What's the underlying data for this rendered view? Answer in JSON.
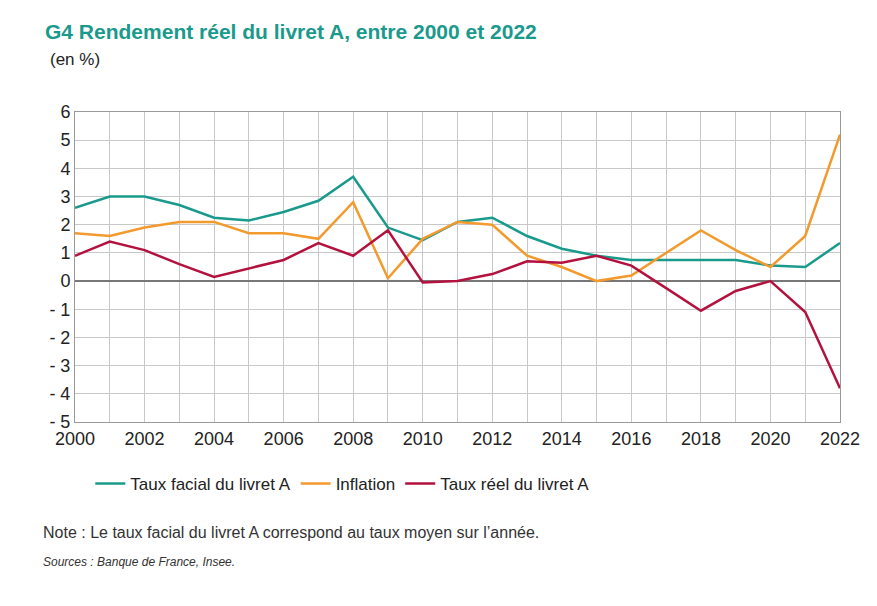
{
  "chart_data": {
    "type": "line",
    "title": "G4 Rendement réel du livret A, entre 2000 et 2022",
    "subtitle": "(en %)",
    "annotations": [
      "Note : Le taux facial du livret A correspond au taux moyen sur l’année.",
      "Sources : Banque de France, Insee."
    ],
    "x": [
      2000,
      2001,
      2002,
      2003,
      2004,
      2005,
      2006,
      2007,
      2008,
      2009,
      2010,
      2011,
      2012,
      2013,
      2014,
      2015,
      2016,
      2017,
      2018,
      2019,
      2020,
      2021,
      2022
    ],
    "series": [
      {
        "name": "Taux facial du livret A",
        "color": "#1a9a8c",
        "values": [
          2.6,
          3.0,
          3.0,
          2.7,
          2.25,
          2.15,
          2.45,
          2.85,
          3.7,
          1.9,
          1.45,
          2.1,
          2.25,
          1.6,
          1.15,
          0.9,
          0.75,
          0.75,
          0.75,
          0.75,
          0.55,
          0.5,
          1.35
        ]
      },
      {
        "name": "Inflation",
        "color": "#f39a2e",
        "values": [
          1.7,
          1.6,
          1.9,
          2.1,
          2.1,
          1.7,
          1.7,
          1.5,
          2.8,
          0.1,
          1.5,
          2.1,
          2.0,
          0.9,
          0.5,
          0.0,
          0.2,
          1.0,
          1.8,
          1.1,
          0.5,
          1.6,
          5.2
        ]
      },
      {
        "name": "Taux réel du livret A",
        "color": "#b3123f",
        "values": [
          0.9,
          1.4,
          1.1,
          0.6,
          0.15,
          0.45,
          0.75,
          1.35,
          0.9,
          1.8,
          -0.05,
          0.0,
          0.25,
          0.7,
          0.65,
          0.9,
          0.55,
          -0.25,
          -1.05,
          -0.35,
          0.0,
          -1.1,
          -3.8
        ]
      }
    ],
    "xlim": [
      2000,
      2022
    ],
    "xticks": [
      2000,
      2002,
      2004,
      2006,
      2008,
      2010,
      2012,
      2014,
      2016,
      2018,
      2020,
      2022
    ],
    "ylim": [
      -5,
      6
    ],
    "yticks": [
      {
        "value": -5,
        "label": "- 5"
      },
      {
        "value": -4,
        "label": "- 4"
      },
      {
        "value": -3,
        "label": "- 3"
      },
      {
        "value": -2,
        "label": "- 2"
      },
      {
        "value": -1,
        "label": "- 1"
      },
      0,
      1,
      2,
      3,
      4,
      5,
      6
    ],
    "grid": true,
    "legend": "bottom"
  }
}
